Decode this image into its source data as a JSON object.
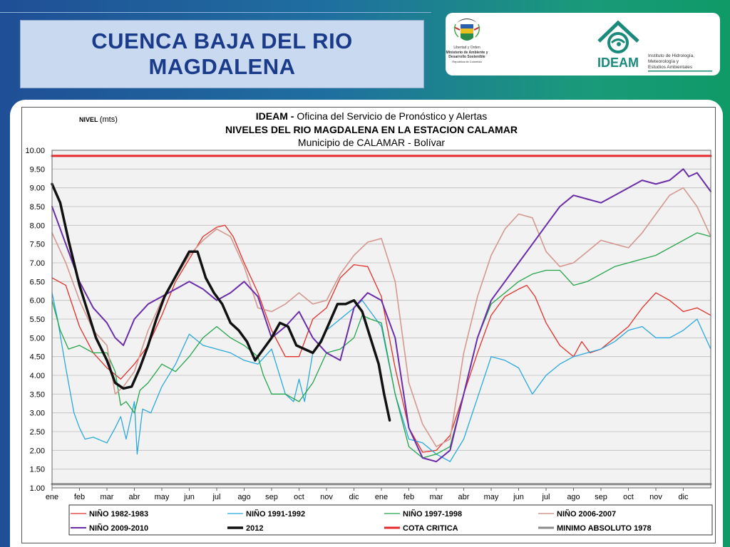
{
  "slide": {
    "title_line1": "CUENCA  BAJA  DEL RIO",
    "title_line2": "MAGDALENA"
  },
  "logos": {
    "gov_lines": [
      "Libertad y Orden",
      "Ministerio de Ambiente y",
      "Desarrollo Sostenible",
      "República de Colombia"
    ],
    "ideam_name": "IDEAM",
    "ideam_sub": [
      "Instituto de Hidrología,",
      "Meteorología y",
      "Estudios Ambientales"
    ]
  },
  "chart_data": {
    "type": "line",
    "title_org": "IDEAM - ",
    "title_office": "Oficina del Servicio de Pronóstico y Alertas",
    "title": "NIVELES DEL RIO MAGDALENA EN LA ESTACION CALAMAR",
    "subtitle": "Municipio de CALAMAR - Bolívar",
    "ylabel_a": "NIVEL ",
    "ylabel_b": "(mts)",
    "ylim": [
      1.0,
      10.0
    ],
    "yticks": [
      "10.00",
      "9.50",
      "9.00",
      "8.50",
      "8.00",
      "7.50",
      "7.00",
      "6.50",
      "6.00",
      "5.50",
      "5.00",
      "4.50",
      "4.00",
      "3.50",
      "3.00",
      "2.50",
      "2.00",
      "1.50",
      "1.00"
    ],
    "xlim": [
      0,
      24
    ],
    "xticks": [
      "ene",
      "feb",
      "mar",
      "abr",
      "may",
      "jun",
      "jul",
      "ago",
      "sep",
      "oct",
      "nov",
      "dic",
      "ene",
      "feb",
      "mar",
      "abr",
      "may",
      "jun",
      "jul",
      "ago",
      "sep",
      "oct",
      "nov",
      "dic"
    ],
    "grid": true,
    "legend_position": "bottom",
    "series": [
      {
        "name": "NIÑO 1982-1983",
        "color": "#e0302a",
        "width": 1.3,
        "x": [
          0,
          0.5,
          1,
          1.5,
          2,
          2.5,
          3,
          3.5,
          4,
          4.5,
          5,
          5.5,
          6,
          6.3,
          6.6,
          7,
          7.5,
          8,
          8.5,
          9,
          9.5,
          10,
          10.5,
          11,
          11.5,
          12,
          12.5,
          13,
          13.5,
          14,
          14.5,
          15,
          15.5,
          16,
          16.5,
          17,
          17.3,
          17.6,
          18,
          18.5,
          19,
          19.3,
          19.6,
          20,
          20.5,
          21,
          21.5,
          22,
          22.5,
          23,
          23.5,
          24
        ],
        "y": [
          6.6,
          6.4,
          5.3,
          4.6,
          4.2,
          3.9,
          4.3,
          4.8,
          5.6,
          6.5,
          7.1,
          7.7,
          7.95,
          8.0,
          7.7,
          7.0,
          6.2,
          5.2,
          4.5,
          4.5,
          5.5,
          5.8,
          6.6,
          6.95,
          6.9,
          6.1,
          4.2,
          2.6,
          1.95,
          2.0,
          2.4,
          3.5,
          4.6,
          5.6,
          6.1,
          6.3,
          6.4,
          6.1,
          5.4,
          4.8,
          4.5,
          4.9,
          4.6,
          4.7,
          5.0,
          5.3,
          5.8,
          6.2,
          6.0,
          5.7,
          5.8,
          5.6
        ]
      },
      {
        "name": "NIÑO 1991-1992",
        "color": "#2aa8dc",
        "width": 1.3,
        "x": [
          0,
          0.2,
          0.5,
          0.8,
          1,
          1.2,
          1.5,
          2,
          2.3,
          2.5,
          2.7,
          3,
          3.1,
          3.3,
          3.6,
          4,
          4.5,
          5,
          5.5,
          6,
          6.5,
          7,
          7.5,
          8,
          8.5,
          8.8,
          9,
          9.2,
          9.5,
          10,
          10.5,
          11,
          11.3,
          11.6,
          12,
          12.5,
          13,
          13.5,
          14,
          14.5,
          15,
          15.5,
          16,
          16.5,
          17,
          17.5,
          18,
          18.5,
          19,
          19.5,
          20,
          20.5,
          21,
          21.5,
          22,
          22.5,
          23,
          23.5,
          24
        ],
        "y": [
          6.2,
          5.5,
          4.2,
          3.0,
          2.6,
          2.3,
          2.35,
          2.2,
          2.6,
          2.9,
          2.3,
          3.3,
          1.9,
          3.1,
          3.0,
          3.7,
          4.3,
          5.1,
          4.8,
          4.7,
          4.6,
          4.4,
          4.3,
          4.7,
          3.5,
          3.3,
          3.9,
          3.3,
          4.6,
          5.2,
          5.5,
          5.8,
          6.0,
          5.7,
          5.3,
          3.5,
          2.3,
          2.2,
          1.9,
          1.7,
          2.3,
          3.4,
          4.5,
          4.4,
          4.2,
          3.5,
          4.0,
          4.3,
          4.5,
          4.6,
          4.7,
          4.9,
          5.2,
          5.3,
          5.0,
          5.0,
          5.2,
          5.5,
          4.7
        ]
      },
      {
        "name": "NIÑO 1997-1998",
        "color": "#23a44a",
        "width": 1.3,
        "x": [
          0,
          0.3,
          0.6,
          1,
          1.5,
          2,
          2.3,
          2.5,
          2.7,
          3,
          3.2,
          3.5,
          4,
          4.5,
          5,
          5.5,
          6,
          6.5,
          7,
          7.5,
          7.7,
          8,
          8.5,
          9,
          9.5,
          10,
          10.5,
          11,
          11.3,
          11.6,
          12,
          12.5,
          13,
          13.5,
          14,
          14.5,
          15,
          15.5,
          16,
          16.5,
          17,
          17.5,
          18,
          18.5,
          19,
          19.5,
          20,
          20.5,
          21,
          21.5,
          22,
          22.5,
          23,
          23.5,
          24
        ],
        "y": [
          6.0,
          5.2,
          4.7,
          4.8,
          4.6,
          4.6,
          4.1,
          3.2,
          3.3,
          3.0,
          3.6,
          3.8,
          4.3,
          4.1,
          4.5,
          5.0,
          5.3,
          5.0,
          4.8,
          4.5,
          4.0,
          3.5,
          3.5,
          3.3,
          3.8,
          4.6,
          4.7,
          5.0,
          5.6,
          5.5,
          5.4,
          3.5,
          2.1,
          1.8,
          1.9,
          2.1,
          3.5,
          5.0,
          5.9,
          6.2,
          6.5,
          6.7,
          6.8,
          6.8,
          6.4,
          6.5,
          6.7,
          6.9,
          7.0,
          7.1,
          7.2,
          7.4,
          7.6,
          7.8,
          7.7
        ]
      },
      {
        "name": "NIÑO 2006-2007",
        "color": "#d49890",
        "width": 1.6,
        "x": [
          0,
          0.5,
          1,
          1.5,
          2,
          2.3,
          2.6,
          3,
          3.5,
          4,
          4.5,
          5,
          5.5,
          6,
          6.5,
          7,
          7.5,
          8,
          8.5,
          9,
          9.5,
          10,
          10.5,
          11,
          11.5,
          12,
          12.5,
          13,
          13.5,
          14,
          14.5,
          15,
          15.5,
          16,
          16.5,
          17,
          17.5,
          18,
          18.5,
          19,
          19.5,
          20,
          20.5,
          21,
          21.5,
          22,
          22.5,
          23,
          23.5,
          24
        ],
        "y": [
          7.8,
          7.0,
          6.0,
          5.2,
          4.8,
          3.5,
          3.7,
          4.1,
          5.2,
          6.0,
          6.6,
          7.2,
          7.6,
          7.9,
          7.7,
          6.9,
          5.8,
          5.7,
          5.9,
          6.2,
          5.9,
          6.0,
          6.7,
          7.2,
          7.55,
          7.65,
          6.5,
          3.8,
          2.7,
          2.1,
          2.3,
          4.6,
          6.1,
          7.2,
          7.9,
          8.3,
          8.2,
          7.3,
          6.9,
          7.0,
          7.3,
          7.6,
          7.5,
          7.4,
          7.8,
          8.3,
          8.8,
          9.0,
          8.5,
          7.7
        ]
      },
      {
        "name": "NIÑO 2009-2010",
        "color": "#6a2ca8",
        "width": 2.0,
        "x": [
          0,
          0.5,
          1,
          1.5,
          2,
          2.3,
          2.6,
          3,
          3.5,
          4,
          4.5,
          5,
          5.5,
          6,
          6.5,
          7,
          7.5,
          8,
          8.5,
          9,
          9.5,
          10,
          10.5,
          11,
          11.5,
          12,
          12.5,
          13,
          13.5,
          14,
          14.5,
          15,
          15.5,
          16,
          16.5,
          17,
          17.5,
          18,
          18.5,
          19,
          19.5,
          20,
          20.5,
          21,
          21.5,
          22,
          22.5,
          23,
          23.2,
          23.5,
          24
        ],
        "y": [
          8.5,
          7.5,
          6.5,
          5.8,
          5.4,
          5.0,
          4.8,
          5.5,
          5.9,
          6.1,
          6.3,
          6.5,
          6.3,
          6.0,
          6.2,
          6.5,
          6.1,
          5.0,
          5.3,
          5.7,
          5.0,
          4.6,
          4.4,
          5.8,
          6.2,
          6.0,
          5.0,
          2.6,
          1.8,
          1.7,
          2.0,
          3.5,
          5.0,
          6.0,
          6.5,
          7.0,
          7.5,
          8.0,
          8.5,
          8.8,
          8.7,
          8.6,
          8.8,
          9.0,
          9.2,
          9.1,
          9.2,
          9.5,
          9.3,
          9.4,
          8.9
        ]
      },
      {
        "name": "2012",
        "color": "#111111",
        "width": 3.5,
        "x": [
          0,
          0.3,
          0.6,
          1,
          1.3,
          1.6,
          2,
          2.3,
          2.6,
          2.9,
          3.2,
          3.5,
          3.8,
          4.1,
          4.4,
          4.7,
          5,
          5.3,
          5.6,
          5.9,
          6.2,
          6.5,
          6.8,
          7.1,
          7.4,
          7.7,
          8,
          8.3,
          8.6,
          8.9,
          9.2,
          9.5,
          9.8,
          10.1,
          10.4,
          10.7,
          11,
          11.3,
          11.6,
          11.9,
          12.1,
          12.3
        ],
        "y": [
          9.1,
          8.6,
          7.6,
          6.4,
          5.7,
          5.0,
          4.4,
          3.8,
          3.65,
          3.7,
          4.2,
          4.8,
          5.5,
          6.1,
          6.5,
          6.9,
          7.3,
          7.3,
          6.6,
          6.2,
          5.9,
          5.4,
          5.2,
          4.9,
          4.4,
          4.7,
          5.0,
          5.4,
          5.3,
          4.8,
          4.7,
          4.6,
          4.9,
          5.4,
          5.9,
          5.9,
          6.0,
          5.7,
          5.0,
          4.3,
          3.5,
          2.8
        ]
      },
      {
        "name": "COTA CRITICA",
        "color": "#e52b2b",
        "width": 3,
        "x": [
          0,
          24
        ],
        "y": [
          9.85,
          9.85
        ]
      },
      {
        "name": "MINIMO ABSOLUTO 1978",
        "color": "#8c8c8c",
        "width": 3,
        "x": [
          0,
          24
        ],
        "y": [
          1.1,
          1.1
        ]
      }
    ]
  }
}
